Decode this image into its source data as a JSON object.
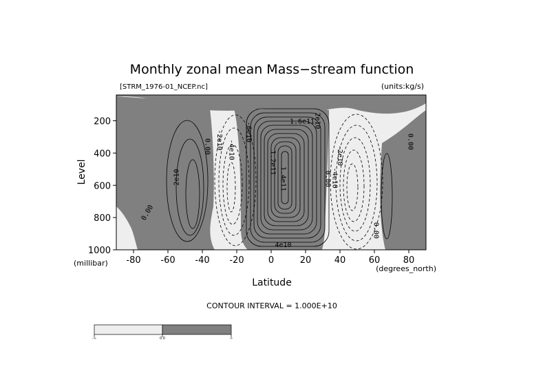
{
  "chart_data": {
    "type": "contour",
    "title": "Monthly zonal mean Mass−stream function",
    "source_label": "[STRM_1976-01_NCEP.nc]",
    "units_label": "(units:kg/s)",
    "xlabel": "Latitude",
    "x_units": "(degrees_north)",
    "ylabel": "Level",
    "y_units": "(millibar)",
    "xlim": [
      -90,
      90
    ],
    "ylim": [
      1000,
      40
    ],
    "y_reversed": true,
    "x_ticks": [
      -80,
      -60,
      -40,
      -20,
      0,
      20,
      40,
      60,
      80
    ],
    "y_ticks": [
      200,
      400,
      600,
      800,
      1000
    ],
    "contour_interval_text": "CONTOUR INTERVAL = 1.000E+10",
    "contour_interval": 10000000000.0,
    "shading": {
      "negative": "#eeeeee",
      "positive": "#808080"
    },
    "colorbar_labels": [
      "-∞",
      "0.0",
      "∞"
    ],
    "cells": [
      {
        "center_lat": -50,
        "center_level": 600,
        "sign": "positive",
        "peak": 30000000000.0
      },
      {
        "center_lat": -24,
        "center_level": 500,
        "sign": "negative",
        "peak": -60000000000.0
      },
      {
        "center_lat": 12,
        "center_level": 500,
        "sign": "positive",
        "peak": 170000000000.0
      },
      {
        "center_lat": 46,
        "center_level": 550,
        "sign": "negative",
        "peak": -70000000000.0
      },
      {
        "center_lat": 67,
        "center_level": 650,
        "sign": "positive",
        "peak": 10000000000.0
      }
    ],
    "contour_labels": [
      {
        "text": "2e10",
        "lat": -55,
        "level": 550,
        "rotate": -90
      },
      {
        "text": "0.00",
        "lat": -37,
        "level": 360,
        "rotate": 90
      },
      {
        "text": "-2e10",
        "lat": -30,
        "level": 320,
        "rotate": 90
      },
      {
        "text": "-4e10",
        "lat": -23,
        "level": 380,
        "rotate": 90
      },
      {
        "text": "-6e10",
        "lat": -13,
        "level": 270,
        "rotate": 90
      },
      {
        "text": "1.2e11",
        "lat": 1,
        "level": 460,
        "rotate": 90
      },
      {
        "text": "1.4e11",
        "lat": 7,
        "level": 560,
        "rotate": 90
      },
      {
        "text": "1.6e11",
        "lat": 18,
        "level": 205,
        "rotate": 0
      },
      {
        "text": "2e10",
        "lat": 27,
        "level": 200,
        "rotate": 90
      },
      {
        "text": "0.00",
        "lat": 33,
        "level": 560,
        "rotate": 90
      },
      {
        "text": "-4e10",
        "lat": 37,
        "level": 555,
        "rotate": 90
      },
      {
        "text": "-2e10",
        "lat": 40,
        "level": 415,
        "rotate": 90
      },
      {
        "text": "0.00",
        "lat": 61,
        "level": 880,
        "rotate": 90
      },
      {
        "text": "0.00",
        "lat": 81,
        "level": 330,
        "rotate": 90
      },
      {
        "text": "0.00",
        "lat": -72,
        "level": 770,
        "rotate": -60
      },
      {
        "text": "4e10",
        "lat": 7,
        "level": 970,
        "rotate": 0
      }
    ]
  }
}
